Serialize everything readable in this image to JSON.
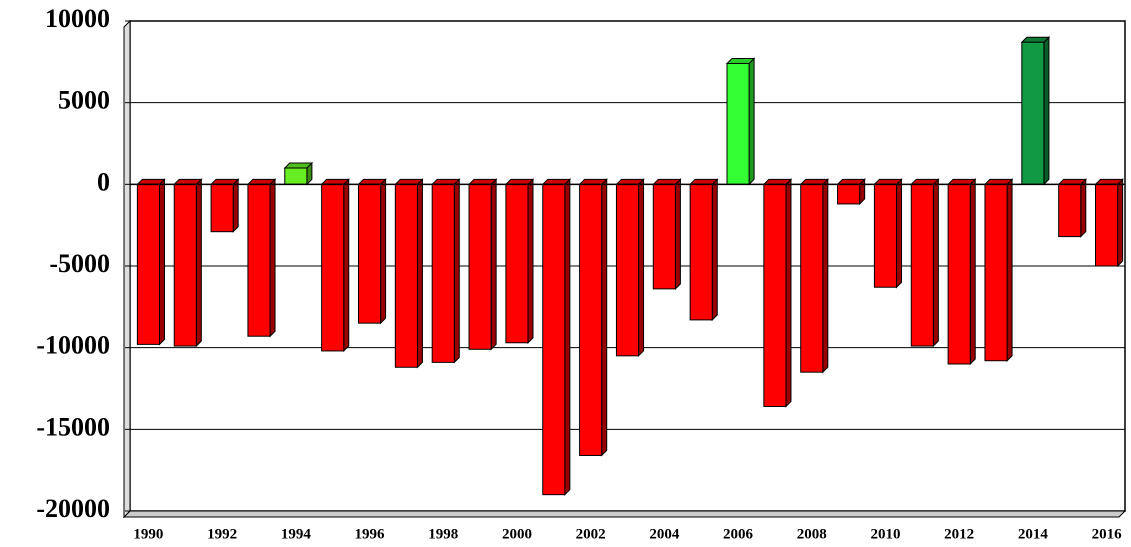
{
  "chart_data": {
    "type": "bar",
    "categories": [
      "1990",
      null,
      "1992",
      null,
      "1994",
      null,
      "1996",
      null,
      "1998",
      null,
      "2000",
      null,
      "2002",
      null,
      "2004",
      null,
      "2006",
      null,
      "2008",
      null,
      "2010",
      null,
      "2012",
      null,
      "2014",
      null,
      "2016"
    ],
    "values": [
      -9800,
      -9900,
      -2900,
      -9300,
      1000,
      -10200,
      -8500,
      -11200,
      -10900,
      -10100,
      -9700,
      -19000,
      -16600,
      -10500,
      -6400,
      -8300,
      7400,
      -13600,
      -11500,
      -1200,
      -6300,
      -9900,
      -11000,
      -10800,
      8700,
      -3200,
      -5000
    ],
    "colors": [
      "#ff0000",
      "#ff0000",
      "#ff0000",
      "#ff0000",
      "#66ee22",
      "#ff0000",
      "#ff0000",
      "#ff0000",
      "#ff0000",
      "#ff0000",
      "#ff0000",
      "#ff0000",
      "#ff0000",
      "#ff0000",
      "#ff0000",
      "#ff0000",
      "#33ff33",
      "#ff0000",
      "#ff0000",
      "#ff0000",
      "#ff0000",
      "#ff0000",
      "#ff0000",
      "#ff0000",
      "#119944",
      "#ff0000",
      "#ff0000"
    ],
    "ylim": [
      -20000,
      10000
    ],
    "yticks": [
      -20000,
      -15000,
      -10000,
      -5000,
      0,
      5000,
      10000
    ],
    "grid": true
  }
}
